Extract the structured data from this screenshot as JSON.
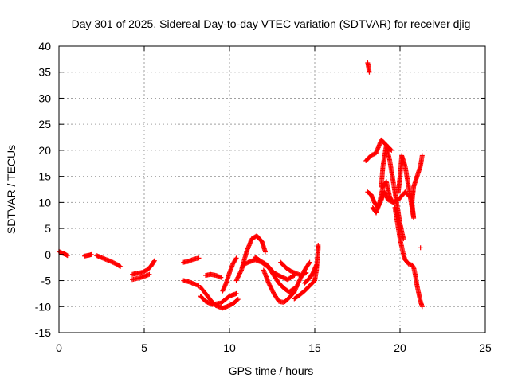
{
  "chart_data": {
    "type": "scatter",
    "title": "Day 301 of 2025, Sidereal Day-to-day VTEC variation (SDTVAR) for receiver djig",
    "xlabel": "GPS time / hours",
    "ylabel": "SDTVAR / TECUs",
    "xlim": [
      0,
      25
    ],
    "ylim": [
      -15,
      40
    ],
    "xticks": [
      0,
      5,
      10,
      15,
      20,
      25
    ],
    "yticks": [
      -15,
      -10,
      -5,
      0,
      5,
      10,
      15,
      20,
      25,
      30,
      35,
      40
    ],
    "grid": true,
    "marker": "+",
    "marker_color": "#ff0000",
    "series": [
      {
        "name": "SDTVAR",
        "tracks": [
          [
            [
              0.0,
              0.6
            ],
            [
              0.1,
              0.4
            ],
            [
              0.25,
              0.2
            ],
            [
              0.4,
              0.0
            ],
            [
              0.5,
              -0.2
            ]
          ],
          [
            [
              1.5,
              -0.3
            ],
            [
              1.65,
              -0.2
            ],
            [
              1.8,
              -0.1
            ],
            [
              1.9,
              0.0
            ]
          ],
          [
            [
              2.2,
              -0.2
            ],
            [
              2.5,
              -0.6
            ],
            [
              2.8,
              -1.0
            ],
            [
              3.1,
              -1.4
            ],
            [
              3.4,
              -1.9
            ],
            [
              3.6,
              -2.3
            ]
          ],
          [
            [
              4.3,
              -3.8
            ],
            [
              4.6,
              -3.6
            ],
            [
              4.9,
              -3.4
            ],
            [
              5.2,
              -2.9
            ],
            [
              5.4,
              -2.2
            ],
            [
              5.6,
              -1.2
            ]
          ],
          [
            [
              4.3,
              -4.8
            ],
            [
              4.7,
              -4.5
            ],
            [
              5.0,
              -4.2
            ],
            [
              5.3,
              -3.8
            ]
          ],
          [
            [
              7.3,
              -1.5
            ],
            [
              7.6,
              -1.3
            ],
            [
              7.9,
              -0.9
            ],
            [
              8.2,
              -0.7
            ]
          ],
          [
            [
              7.3,
              -5.0
            ],
            [
              7.6,
              -5.2
            ],
            [
              7.9,
              -5.6
            ],
            [
              8.2,
              -6.0
            ]
          ],
          [
            [
              8.3,
              -6.3
            ],
            [
              8.6,
              -7.5
            ],
            [
              8.9,
              -8.8
            ],
            [
              9.2,
              -9.8
            ],
            [
              9.6,
              -10.3
            ],
            [
              10.0,
              -9.8
            ],
            [
              10.3,
              -9.2
            ],
            [
              10.5,
              -8.6
            ]
          ],
          [
            [
              8.3,
              -8.0
            ],
            [
              8.6,
              -9.0
            ],
            [
              9.0,
              -9.6
            ],
            [
              9.5,
              -9.3
            ],
            [
              10.0,
              -8.0
            ],
            [
              10.4,
              -7.5
            ]
          ],
          [
            [
              8.6,
              -4.0
            ],
            [
              8.9,
              -3.8
            ],
            [
              9.2,
              -4.0
            ],
            [
              9.5,
              -4.4
            ]
          ],
          [
            [
              9.6,
              -7.0
            ],
            [
              9.8,
              -5.5
            ],
            [
              10.0,
              -3.5
            ],
            [
              10.2,
              -1.8
            ],
            [
              10.4,
              -0.7
            ]
          ],
          [
            [
              10.4,
              -5.0
            ],
            [
              10.7,
              -3.0
            ],
            [
              11.0,
              0.5
            ],
            [
              11.3,
              3.0
            ],
            [
              11.6,
              3.6
            ],
            [
              11.9,
              2.5
            ],
            [
              12.1,
              0.5
            ]
          ],
          [
            [
              10.8,
              -2.0
            ],
            [
              11.1,
              -1.5
            ],
            [
              11.5,
              -1.0
            ],
            [
              11.9,
              -1.5
            ],
            [
              12.3,
              -2.5
            ],
            [
              12.6,
              -4.0
            ],
            [
              12.9,
              -5.5
            ],
            [
              13.2,
              -6.5
            ],
            [
              13.5,
              -7.2
            ],
            [
              13.8,
              -6.5
            ]
          ],
          [
            [
              11.5,
              -0.5
            ],
            [
              11.8,
              -1.2
            ],
            [
              12.2,
              -2.0
            ],
            [
              12.6,
              -3.5
            ],
            [
              13.0,
              -4.2
            ],
            [
              13.4,
              -4.8
            ],
            [
              13.8,
              -4.0
            ]
          ],
          [
            [
              12.0,
              -3.0
            ],
            [
              12.3,
              -5.5
            ],
            [
              12.6,
              -7.5
            ],
            [
              12.9,
              -9.0
            ],
            [
              13.2,
              -9.2
            ],
            [
              13.5,
              -8.3
            ],
            [
              13.8,
              -7.2
            ],
            [
              14.1,
              -5.0
            ],
            [
              14.4,
              -3.0
            ],
            [
              14.7,
              -1.5
            ]
          ],
          [
            [
              13.0,
              -1.5
            ],
            [
              13.3,
              -2.5
            ],
            [
              13.6,
              -3.2
            ],
            [
              13.9,
              -3.6
            ],
            [
              14.2,
              -4.0
            ],
            [
              14.5,
              -3.5
            ]
          ],
          [
            [
              13.8,
              -8.5
            ],
            [
              14.1,
              -7.8
            ],
            [
              14.4,
              -7.0
            ],
            [
              14.7,
              -6.0
            ],
            [
              15.0,
              -5.0
            ],
            [
              15.1,
              -3.0
            ],
            [
              15.15,
              -1.0
            ],
            [
              15.2,
              1.0
            ],
            [
              15.2,
              1.8
            ]
          ],
          [
            [
              14.4,
              -5.5
            ],
            [
              14.7,
              -4.5
            ],
            [
              14.9,
              -3.5
            ],
            [
              15.1,
              -2.0
            ]
          ],
          [
            [
              18.1,
              36.8
            ],
            [
              18.15,
              36.0
            ],
            [
              18.2,
              35.0
            ]
          ],
          [
            [
              18.0,
              18.0
            ],
            [
              18.3,
              19.0
            ],
            [
              18.6,
              19.5
            ],
            [
              18.9,
              22.0
            ],
            [
              19.2,
              21.0
            ],
            [
              19.5,
              20.0
            ]
          ],
          [
            [
              18.1,
              12.0
            ],
            [
              18.3,
              11.5
            ],
            [
              18.5,
              10.0
            ],
            [
              18.7,
              9.0
            ],
            [
              18.9,
              10.5
            ],
            [
              19.1,
              12.0
            ],
            [
              19.3,
              10.5
            ],
            [
              19.6,
              10.0
            ],
            [
              19.9,
              10.5
            ],
            [
              20.3,
              12.0
            ],
            [
              20.6,
              11.0
            ]
          ],
          [
            [
              18.4,
              9.0
            ],
            [
              18.6,
              8.0
            ],
            [
              18.8,
              10.0
            ],
            [
              19.0,
              13.0
            ],
            [
              19.2,
              14.0
            ],
            [
              19.4,
              11.0
            ],
            [
              19.6,
              10.0
            ]
          ],
          [
            [
              18.9,
              13.0
            ],
            [
              19.0,
              17.0
            ],
            [
              19.2,
              21.0
            ],
            [
              19.4,
              18.0
            ],
            [
              19.6,
              14.0
            ],
            [
              19.8,
              10.0
            ],
            [
              20.0,
              6.0
            ],
            [
              20.2,
              3.0
            ]
          ],
          [
            [
              19.9,
              12.0
            ],
            [
              20.0,
              15.0
            ],
            [
              20.1,
              19.0
            ],
            [
              20.3,
              17.0
            ],
            [
              20.5,
              13.0
            ],
            [
              20.7,
              9.0
            ],
            [
              20.8,
              7.0
            ],
            [
              20.7,
              10.0
            ],
            [
              20.8,
              13.0
            ],
            [
              21.0,
              15.0
            ],
            [
              21.2,
              17.0
            ],
            [
              21.3,
              19.0
            ]
          ],
          [
            [
              19.7,
              9.0
            ],
            [
              19.8,
              7.0
            ],
            [
              19.9,
              5.0
            ],
            [
              20.0,
              3.0
            ],
            [
              20.1,
              1.5
            ],
            [
              20.2,
              0.0
            ],
            [
              20.3,
              -1.0
            ],
            [
              20.5,
              -1.8
            ],
            [
              20.7,
              -2.0
            ],
            [
              20.8,
              -2.5
            ],
            [
              20.9,
              -4.0
            ],
            [
              21.0,
              -6.0
            ],
            [
              21.1,
              -7.5
            ],
            [
              21.2,
              -9.0
            ],
            [
              21.3,
              -10.0
            ]
          ]
        ],
        "singles": [
          [
            21.2,
            1.3
          ]
        ]
      }
    ]
  }
}
